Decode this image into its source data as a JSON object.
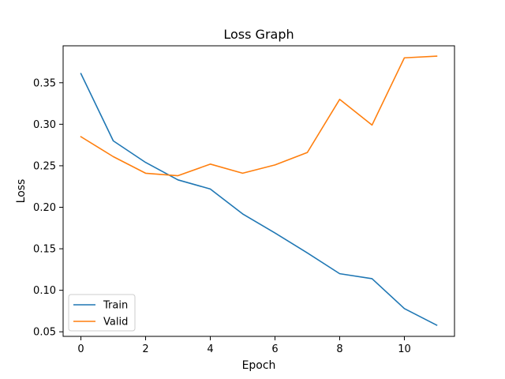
{
  "chart_data": {
    "type": "line",
    "title": "Loss Graph",
    "xlabel": "Epoch",
    "ylabel": "Loss",
    "xlim": [
      -0.55,
      11.55
    ],
    "ylim": [
      0.0445,
      0.3945
    ],
    "x_ticks": [
      0,
      2,
      4,
      6,
      8,
      10
    ],
    "x_tick_labels": [
      "0",
      "2",
      "4",
      "6",
      "8",
      "10"
    ],
    "y_ticks": [
      0.05,
      0.1,
      0.15,
      0.2,
      0.25,
      0.3,
      0.35
    ],
    "y_tick_labels": [
      "0.05",
      "0.10",
      "0.15",
      "0.20",
      "0.25",
      "0.30",
      "0.35"
    ],
    "grid": false,
    "legend_position": "lower-left",
    "x": [
      0,
      1,
      2,
      3,
      4,
      5,
      6,
      7,
      8,
      9,
      10,
      11
    ],
    "series": [
      {
        "name": "Train",
        "color": "#1f77b4",
        "values": [
          0.361,
          0.28,
          0.254,
          0.233,
          0.222,
          0.192,
          0.169,
          0.145,
          0.12,
          0.114,
          0.078,
          0.058
        ]
      },
      {
        "name": "Valid",
        "color": "#ff7f0e",
        "values": [
          0.285,
          0.261,
          0.241,
          0.238,
          0.252,
          0.241,
          0.251,
          0.266,
          0.33,
          0.299,
          0.38,
          0.382
        ]
      }
    ]
  }
}
